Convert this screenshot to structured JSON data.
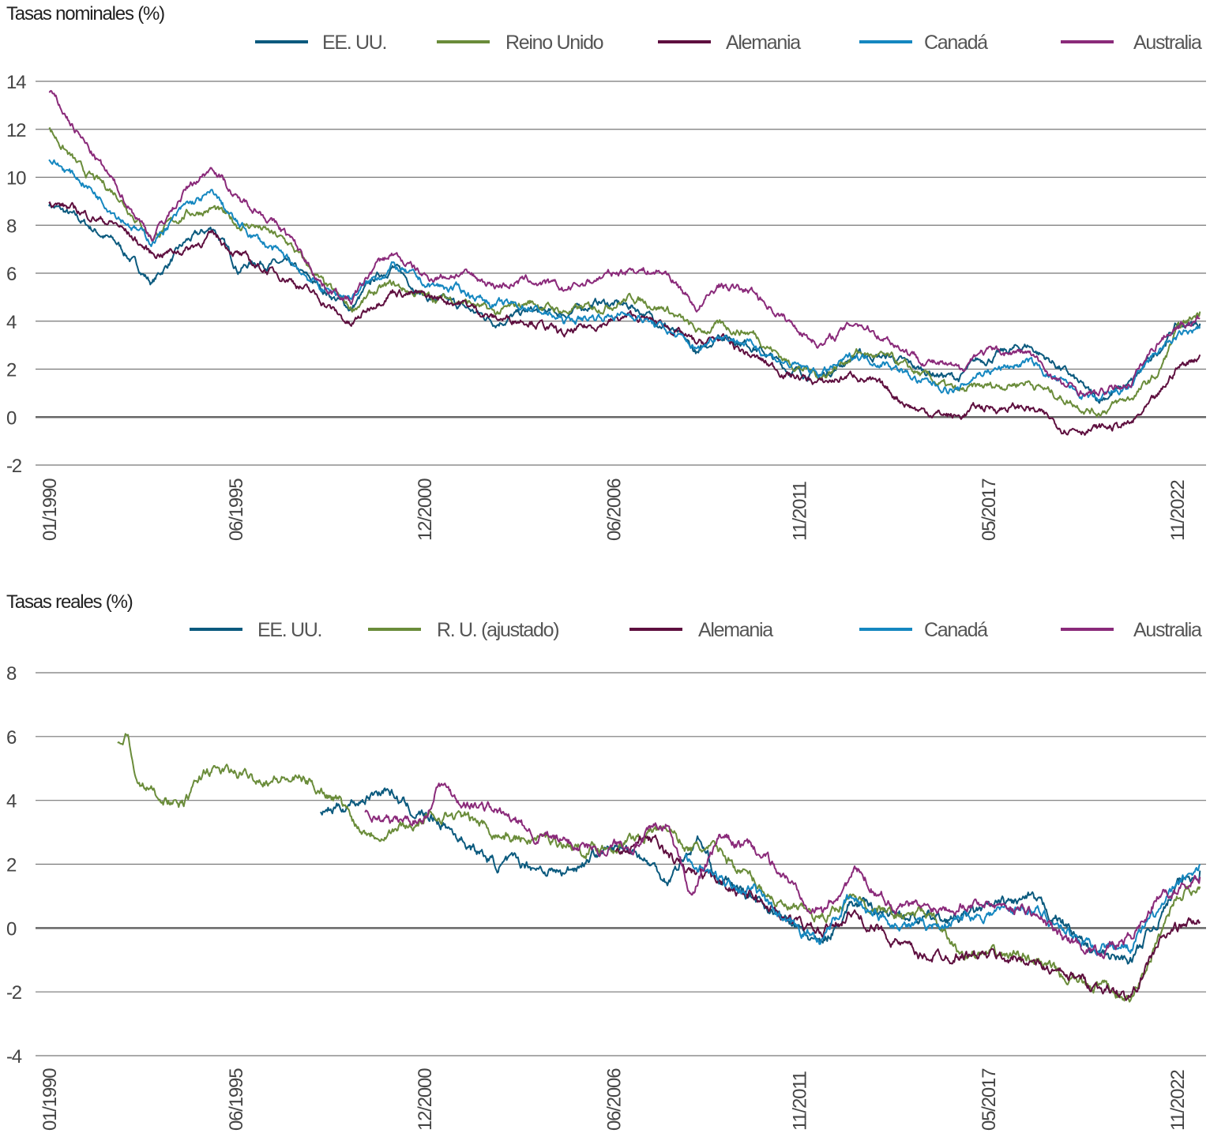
{
  "chart_data": [
    {
      "type": "line",
      "title": "Tasas nominales (%)",
      "xlabel": "",
      "ylabel": "",
      "ylim": [
        -2,
        14
      ],
      "yticks": [
        14,
        12,
        10,
        8,
        6,
        4,
        2,
        0,
        -2
      ],
      "xlim": [
        1990,
        2023.5
      ],
      "xticks": [
        {
          "label": "01/1990",
          "year": 1990.0
        },
        {
          "label": "06/1995",
          "year": 1995.42
        },
        {
          "label": "12/2000",
          "year": 2000.92
        },
        {
          "label": "06/2006",
          "year": 2006.42
        },
        {
          "label": "11/2011",
          "year": 2011.83
        },
        {
          "label": "05/2017",
          "year": 2017.33
        },
        {
          "label": "11/2022",
          "year": 2022.83
        }
      ],
      "legend_position": "top",
      "series": [
        {
          "name": "EE. UU.",
          "color": "#0b5a7e",
          "x": [
            1990,
            1991,
            1992,
            1993,
            1994,
            1994.8,
            1995.5,
            1996,
            1997,
            1998,
            1998.8,
            1999.5,
            2000,
            2001,
            2002,
            2003,
            2004,
            2005,
            2006,
            2007,
            2008,
            2008.9,
            2009.5,
            2010.5,
            2011.5,
            2012.5,
            2013.5,
            2014.5,
            2015.3,
            2016.5,
            2017,
            2018.5,
            2019.5,
            2020.5,
            2021.5,
            2022.3,
            2022.8,
            2023.5
          ],
          "y": [
            8.9,
            8.1,
            7.2,
            5.6,
            7.3,
            7.9,
            6.2,
            6.5,
            6.3,
            5.3,
            4.5,
            5.8,
            6.3,
            5.0,
            4.6,
            4.0,
            4.4,
            4.3,
            4.8,
            4.6,
            3.8,
            2.6,
            3.5,
            3.0,
            2.0,
            1.7,
            2.6,
            2.5,
            2.0,
            1.6,
            2.3,
            3.0,
            2.0,
            0.7,
            1.4,
            2.8,
            3.8,
            3.9
          ]
        },
        {
          "name": "Reino Unido",
          "color": "#6a8c3a",
          "x": [
            1990,
            1991,
            1992,
            1993,
            1994,
            1994.8,
            1995.5,
            1996,
            1997,
            1998,
            1998.8,
            1999.5,
            2000,
            2001,
            2002,
            2003,
            2004,
            2005,
            2006,
            2007,
            2008,
            2008.9,
            2009.5,
            2010.5,
            2011.5,
            2012.5,
            2013.5,
            2014.5,
            2015.3,
            2016.5,
            2017,
            2018.5,
            2019.5,
            2020.5,
            2021.5,
            2022.3,
            2022.8,
            2023.5
          ],
          "y": [
            12.0,
            10.2,
            9.3,
            7.5,
            8.5,
            8.7,
            8.0,
            8.0,
            7.2,
            5.5,
            4.5,
            5.2,
            5.5,
            5.0,
            4.9,
            4.3,
            4.8,
            4.4,
            4.6,
            5.0,
            4.5,
            3.5,
            3.8,
            3.5,
            2.3,
            1.7,
            2.7,
            2.4,
            1.8,
            1.0,
            1.2,
            1.5,
            0.8,
            0.2,
            0.8,
            1.8,
            3.5,
            4.4
          ]
        },
        {
          "name": "Alemania",
          "color": "#5e0f3f",
          "x": [
            1990,
            1991,
            1992,
            1993,
            1994,
            1994.8,
            1995.5,
            1996,
            1997,
            1998,
            1998.8,
            1999.5,
            2000,
            2001,
            2002,
            2003,
            2004,
            2005,
            2006,
            2007,
            2008,
            2008.9,
            2009.5,
            2010.5,
            2011.5,
            2012.5,
            2013.5,
            2014.5,
            2015.3,
            2016.5,
            2017,
            2018.5,
            2019.5,
            2020.5,
            2021.5,
            2022.3,
            2022.8,
            2023.5
          ],
          "y": [
            9.0,
            8.5,
            8.0,
            6.8,
            7.0,
            7.6,
            6.8,
            6.3,
            5.8,
            4.8,
            3.8,
            4.8,
            5.3,
            5.0,
            4.8,
            4.1,
            4.1,
            3.4,
            3.9,
            4.2,
            3.8,
            3.0,
            3.3,
            2.5,
            1.8,
            1.4,
            1.8,
            1.0,
            0.3,
            0.0,
            0.4,
            0.4,
            -0.4,
            -0.5,
            -0.3,
            0.8,
            2.0,
            2.6
          ]
        },
        {
          "name": "Canadá",
          "color": "#1587c0",
          "x": [
            1990,
            1991,
            1992,
            1993,
            1994,
            1994.8,
            1995.5,
            1996,
            1997,
            1998,
            1998.8,
            1999.5,
            2000,
            2001,
            2002,
            2003,
            2004,
            2005,
            2006,
            2007,
            2008,
            2008.9,
            2009.5,
            2010.5,
            2011.5,
            2012.5,
            2013.5,
            2014.5,
            2015.3,
            2016.5,
            2017,
            2018.5,
            2019.5,
            2020.5,
            2021.5,
            2022.3,
            2022.8,
            2023.5
          ],
          "y": [
            10.8,
            9.8,
            8.5,
            7.3,
            8.8,
            9.3,
            8.0,
            7.5,
            6.5,
            5.3,
            5.0,
            5.8,
            6.3,
            5.5,
            5.3,
            4.7,
            4.6,
            4.0,
            4.2,
            4.3,
            3.6,
            2.8,
            3.5,
            3.0,
            2.2,
            1.8,
            2.6,
            2.2,
            1.5,
            1.1,
            1.8,
            2.3,
            1.4,
            0.6,
            1.3,
            2.8,
            3.3,
            3.7
          ]
        },
        {
          "name": "Australia",
          "color": "#8a2a7a",
          "x": [
            1990,
            1991,
            1992,
            1993,
            1994,
            1994.8,
            1995.5,
            1996,
            1997,
            1998,
            1998.8,
            1999.5,
            2000,
            2001,
            2002,
            2003,
            2004,
            2005,
            2006,
            2007,
            2008,
            2008.9,
            2009.5,
            2010.5,
            2011.5,
            2012.5,
            2013.5,
            2014.5,
            2015.3,
            2016.5,
            2017,
            2018.5,
            2019.5,
            2020.5,
            2021.5,
            2022.3,
            2022.8,
            2023.5
          ],
          "y": [
            13.6,
            11.5,
            9.5,
            7.5,
            9.5,
            10.5,
            9.0,
            8.8,
            7.5,
            5.5,
            4.8,
            6.3,
            6.8,
            5.8,
            6.0,
            5.5,
            5.7,
            5.3,
            5.8,
            6.2,
            6.0,
            4.5,
            5.5,
            5.2,
            4.0,
            3.0,
            4.0,
            3.2,
            2.5,
            1.9,
            2.7,
            2.7,
            1.3,
            0.9,
            1.5,
            3.2,
            3.8,
            4.1
          ]
        }
      ]
    },
    {
      "type": "line",
      "title": "Tasas reales (%)",
      "xlabel": "",
      "ylabel": "",
      "ylim": [
        -4,
        8
      ],
      "yticks": [
        8,
        6,
        4,
        2,
        0,
        -2,
        -4
      ],
      "xlim": [
        1990,
        2023.5
      ],
      "xticks": [
        {
          "label": "01/1990",
          "year": 1990.0
        },
        {
          "label": "06/1995",
          "year": 1995.42
        },
        {
          "label": "12/2000",
          "year": 2000.92
        },
        {
          "label": "06/2006",
          "year": 2006.42
        },
        {
          "label": "11/2011",
          "year": 2011.83
        },
        {
          "label": "05/2017",
          "year": 2017.33
        },
        {
          "label": "11/2022",
          "year": 2022.83
        }
      ],
      "legend_position": "top",
      "series": [
        {
          "name": "EE. UU.",
          "color": "#0b5a7e",
          "x": [
            1997.9,
            1999,
            1999.8,
            2000.5,
            2001.5,
            2002,
            2003,
            2004,
            2005,
            2006,
            2007,
            2008,
            2008.9,
            2009.5,
            2010.5,
            2011.5,
            2012.5,
            2013.3,
            2014.5,
            2015.5,
            2016.5,
            2017,
            2018.5,
            2019.5,
            2020.5,
            2021.5,
            2022.3,
            2022.8,
            2023.5
          ],
          "y": [
            3.6,
            4.0,
            4.4,
            3.7,
            3.3,
            2.8,
            2.0,
            2.0,
            1.7,
            2.4,
            2.5,
            1.5,
            2.8,
            1.5,
            1.0,
            0.2,
            -0.6,
            0.8,
            0.5,
            0.3,
            0.3,
            0.5,
            0.9,
            0.2,
            -0.9,
            -1.0,
            0.3,
            1.3,
            1.8
          ]
        },
        {
          "name": "R. U. (ajustado)",
          "color": "#6a8c3a",
          "x": [
            1992,
            1992.3,
            1992.5,
            1993,
            1993.9,
            1994.6,
            1995.5,
            1996.5,
            1997.5,
            1998.5,
            1999,
            1999.5,
            2000.5,
            2001.5,
            2002.5,
            2003.5,
            2004.5,
            2005.5,
            2006.5,
            2007.5,
            2008,
            2008.6,
            2009.5,
            2010.5,
            2011.5,
            2012.5,
            2013.3,
            2014.5,
            2015.5,
            2016.5,
            2017.5,
            2018.5,
            2019.5,
            2020.5,
            2021.5,
            2022.3,
            2022.8,
            2023.5
          ],
          "y": [
            5.7,
            6.1,
            4.6,
            4.3,
            3.8,
            5.0,
            4.8,
            4.7,
            4.6,
            4.0,
            3.2,
            3.0,
            3.2,
            3.6,
            3.3,
            2.8,
            2.8,
            2.5,
            2.6,
            3.0,
            3.2,
            2.5,
            2.4,
            1.5,
            0.6,
            0.3,
            1.0,
            0.4,
            0.5,
            -0.8,
            -0.9,
            -0.8,
            -1.6,
            -1.8,
            -2.3,
            -0.3,
            1.0,
            1.3
          ]
        },
        {
          "name": "Alemania",
          "color": "#5e0f3f",
          "x": [
            2006.5,
            2007.5,
            2008.5,
            2009.5,
            2010.5,
            2011.5,
            2012.5,
            2013.3,
            2014.5,
            2015.3,
            2016.5,
            2017.5,
            2018.5,
            2019.5,
            2020.5,
            2021.5,
            2022.3,
            2022.8,
            2023.5
          ],
          "y": [
            2.5,
            2.8,
            1.8,
            1.5,
            1.0,
            0.3,
            -0.2,
            0.5,
            -0.3,
            -0.9,
            -0.8,
            -0.9,
            -1.0,
            -1.5,
            -1.8,
            -2.2,
            -0.5,
            0.0,
            0.2
          ]
        },
        {
          "name": "Canadá",
          "color": "#1587c0",
          "x": [
            2008.5,
            2009.5,
            2010.5,
            2011.5,
            2012.5,
            2013.3,
            2014.5,
            2015.5,
            2016.5,
            2017.5,
            2018.5,
            2019.5,
            2020.5,
            2021.5,
            2022.3,
            2022.8,
            2023.5
          ],
          "y": [
            2.2,
            1.5,
            1.2,
            0.0,
            -0.3,
            0.9,
            0.2,
            0.0,
            0.3,
            0.5,
            0.7,
            0.0,
            -0.6,
            -0.5,
            0.5,
            1.2,
            2.0
          ]
        },
        {
          "name": "Australia",
          "color": "#8a2a7a",
          "x": [
            1999.2,
            2000,
            2001,
            2001.3,
            2002,
            2003,
            2004,
            2005,
            2006,
            2007,
            2008,
            2008.7,
            2009.5,
            2010.5,
            2011.5,
            2012.5,
            2013.5,
            2014.5,
            2015.5,
            2016.5,
            2017.5,
            2018.5,
            2019.5,
            2020.5,
            2021.5,
            2022.3,
            2022.8,
            2023.5
          ],
          "y": [
            3.6,
            3.3,
            3.5,
            4.6,
            4.0,
            3.7,
            3.0,
            2.7,
            2.5,
            2.7,
            3.2,
            1.0,
            2.8,
            2.5,
            1.5,
            0.5,
            1.8,
            0.8,
            0.6,
            0.8,
            0.8,
            0.6,
            -0.3,
            -0.7,
            -0.3,
            1.0,
            1.2,
            1.6
          ]
        }
      ]
    }
  ]
}
